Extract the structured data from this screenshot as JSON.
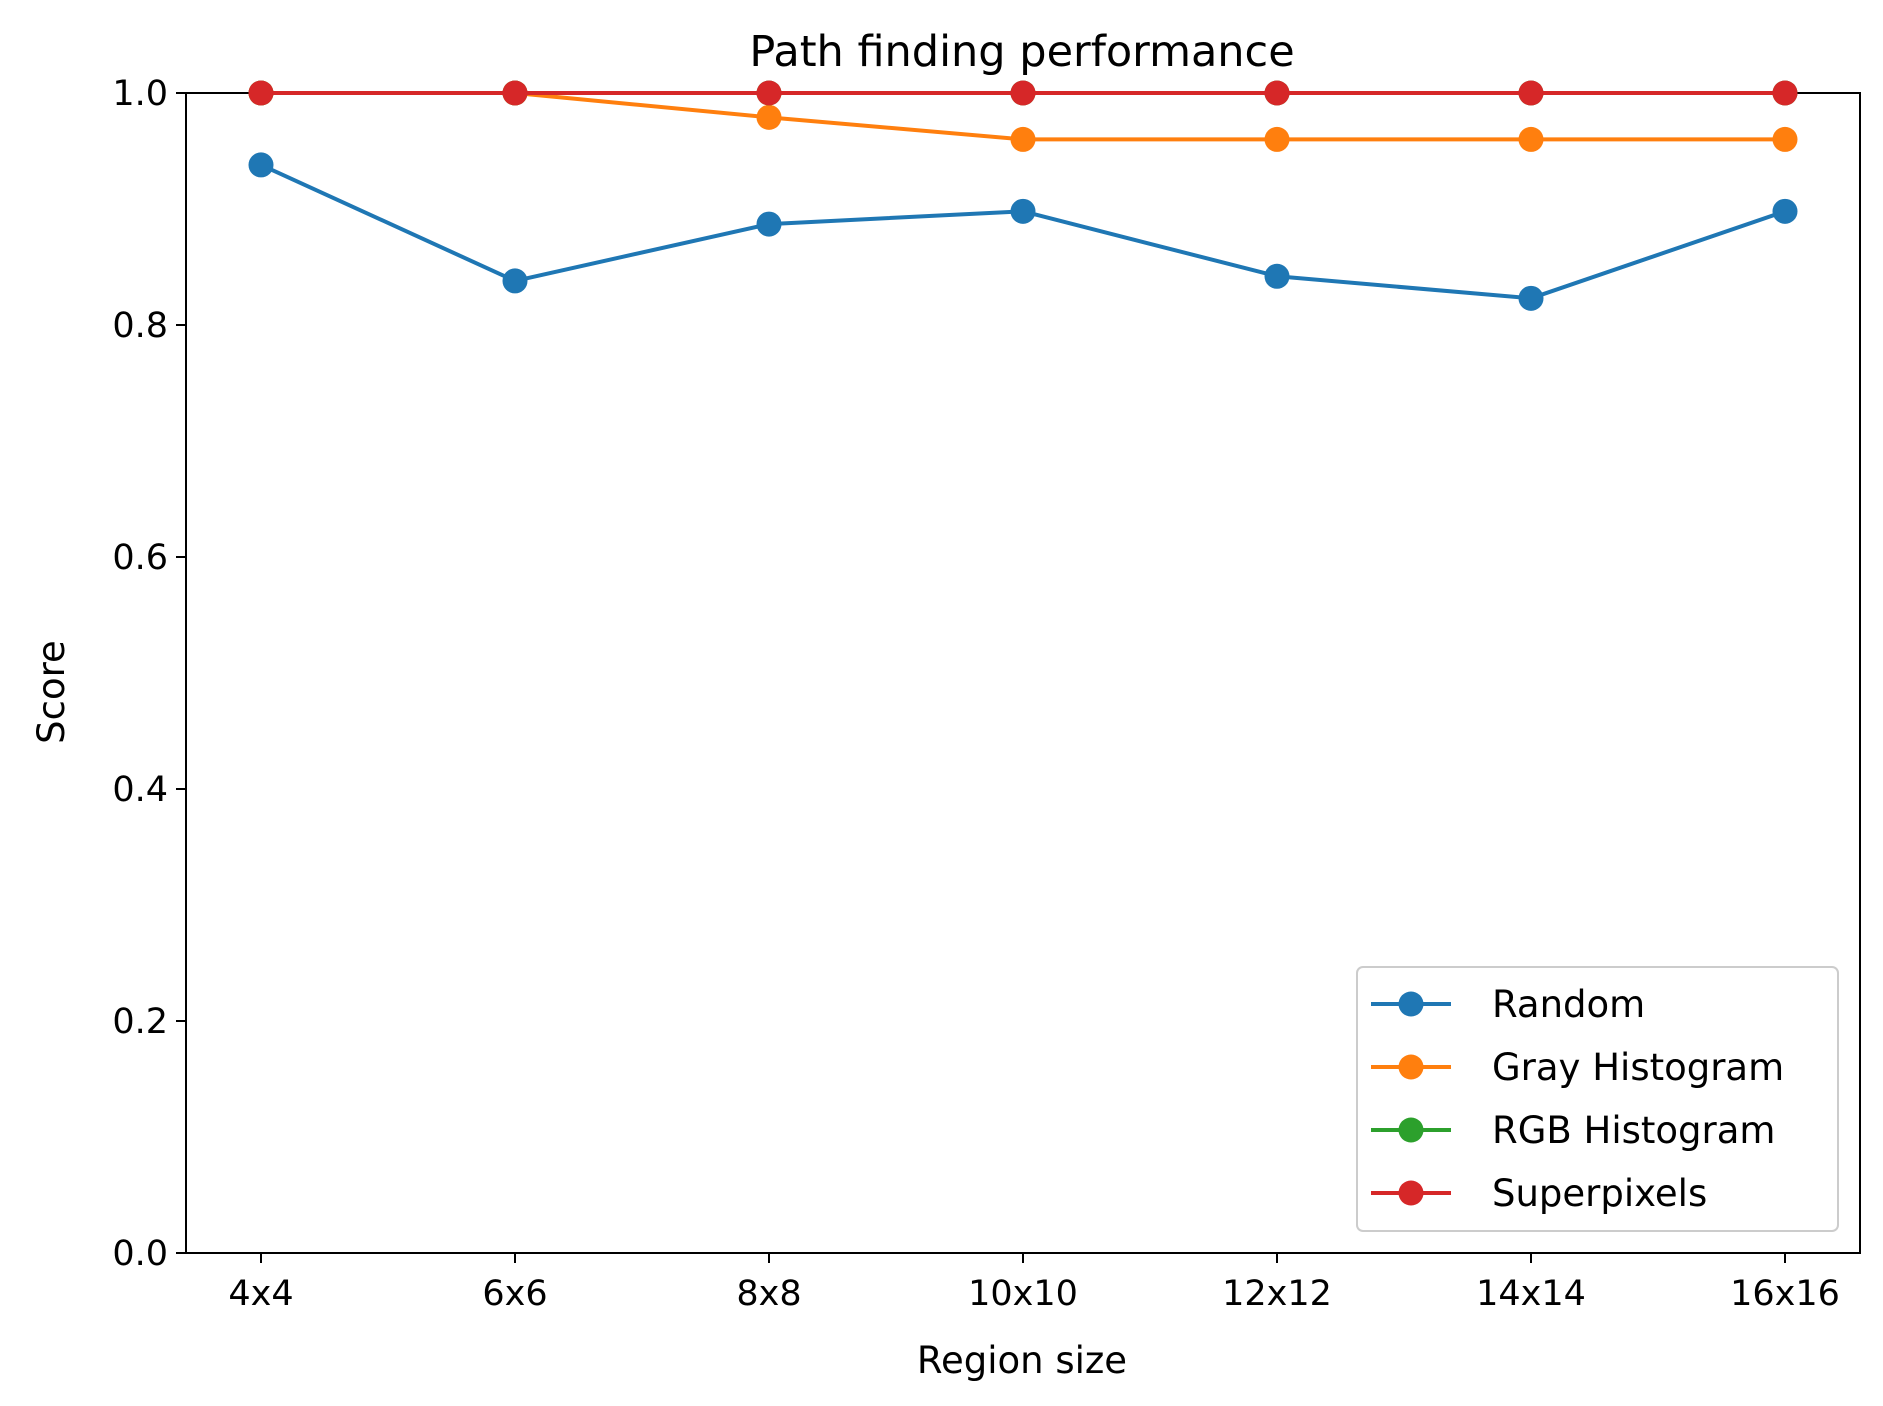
{
  "chart_data": {
    "type": "line",
    "title": "Path finding performance",
    "xlabel": "Region size",
    "ylabel": "Score",
    "categories": [
      "4x4",
      "6x6",
      "8x8",
      "10x10",
      "12x12",
      "14x14",
      "16x16"
    ],
    "ylim": [
      0.0,
      1.0
    ],
    "yticks": [
      "0.0",
      "0.2",
      "0.4",
      "0.6",
      "0.8",
      "1.0"
    ],
    "grid": false,
    "legend_position": "bottom-right",
    "series": [
      {
        "name": "Random",
        "color": "#1f77b4",
        "marker": "circle",
        "values": [
          0.938,
          0.838,
          0.887,
          0.898,
          0.842,
          0.823,
          0.898
        ]
      },
      {
        "name": "Gray Histogram",
        "color": "#ff7f0e",
        "marker": "circle",
        "values": [
          1.0,
          1.0,
          0.979,
          0.96,
          0.96,
          0.96,
          0.96
        ]
      },
      {
        "name": "RGB Histogram",
        "color": "#2ca02c",
        "marker": "circle",
        "values": [
          1.0,
          1.0,
          1.0,
          1.0,
          1.0,
          1.0,
          1.0
        ]
      },
      {
        "name": "Superpixels",
        "color": "#d62728",
        "marker": "circle",
        "values": [
          1.0,
          1.0,
          1.0,
          1.0,
          1.0,
          1.0,
          1.0
        ]
      }
    ]
  }
}
